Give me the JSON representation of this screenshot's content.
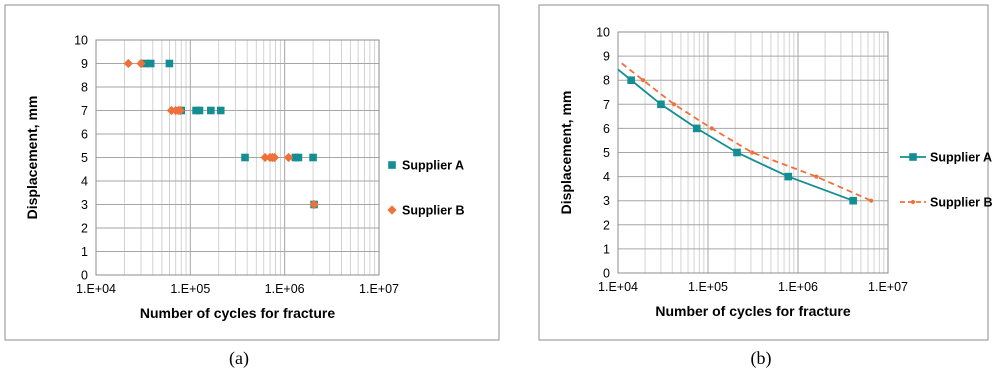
{
  "captions": [
    "(a)",
    "(b)"
  ],
  "colors": {
    "supplier_a": "#138e93",
    "supplier_b": "#f0703a"
  },
  "chart_data": [
    {
      "type": "scatter",
      "title": "",
      "xlabel": "Number of cycles for fracture",
      "ylabel": "Displacement,  mm",
      "xscale": "log",
      "xlim": [
        10000,
        10000000
      ],
      "ylim": [
        0,
        10
      ],
      "xticks": [
        10000,
        100000,
        1000000,
        10000000
      ],
      "xtick_labels": [
        "1.E+04",
        "1.E+05",
        "1.E+06",
        "1.E+07"
      ],
      "yticks": [
        0,
        1,
        2,
        3,
        4,
        5,
        6,
        7,
        8,
        9,
        10
      ],
      "ytick_labels": [
        "0",
        "1",
        "2",
        "3",
        "4",
        "5",
        "6",
        "7",
        "8",
        "9",
        "10"
      ],
      "grid": true,
      "legend_position": "right",
      "series": [
        {
          "name": "Supplier A",
          "marker": "square",
          "line": false,
          "points": [
            {
              "x": 33000,
              "y": 9
            },
            {
              "x": 38000,
              "y": 9
            },
            {
              "x": 60000,
              "y": 9
            },
            {
              "x": 80000,
              "y": 7
            },
            {
              "x": 115000,
              "y": 7
            },
            {
              "x": 125000,
              "y": 7
            },
            {
              "x": 165000,
              "y": 7
            },
            {
              "x": 210000,
              "y": 7
            },
            {
              "x": 380000,
              "y": 5
            },
            {
              "x": 1300000,
              "y": 5
            },
            {
              "x": 1400000,
              "y": 5
            },
            {
              "x": 2000000,
              "y": 5
            },
            {
              "x": 2050000,
              "y": 3
            }
          ]
        },
        {
          "name": "Supplier B",
          "marker": "diamond",
          "line": false,
          "points": [
            {
              "x": 22000,
              "y": 9
            },
            {
              "x": 30000,
              "y": 9
            },
            {
              "x": 63000,
              "y": 7
            },
            {
              "x": 70000,
              "y": 7
            },
            {
              "x": 75000,
              "y": 7
            },
            {
              "x": 78000,
              "y": 7
            },
            {
              "x": 620000,
              "y": 5
            },
            {
              "x": 700000,
              "y": 5
            },
            {
              "x": 740000,
              "y": 5
            },
            {
              "x": 780000,
              "y": 5
            },
            {
              "x": 1100000,
              "y": 5
            },
            {
              "x": 2050000,
              "y": 3
            }
          ]
        }
      ]
    },
    {
      "type": "line",
      "title": "",
      "xlabel": "Number of cycles for fracture",
      "ylabel": "Displacement,  mm",
      "xscale": "log",
      "xlim": [
        10000,
        10000000
      ],
      "ylim": [
        0,
        10
      ],
      "xticks": [
        10000,
        100000,
        1000000,
        10000000
      ],
      "xtick_labels": [
        "1.E+04",
        "1.E+05",
        "1.E+06",
        "1.E+07"
      ],
      "yticks": [
        0,
        1,
        2,
        3,
        4,
        5,
        6,
        7,
        8,
        9,
        10
      ],
      "ytick_labels": [
        "0",
        "1",
        "2",
        "3",
        "4",
        "5",
        "6",
        "7",
        "8",
        "9",
        "10"
      ],
      "grid": true,
      "legend_position": "right",
      "series": [
        {
          "name": "Supplier A",
          "marker": "square",
          "line": "solid",
          "points": [
            {
              "x": 10000,
              "y": 8.45
            },
            {
              "x": 14000,
              "y": 8
            },
            {
              "x": 30000,
              "y": 7
            },
            {
              "x": 75000,
              "y": 6
            },
            {
              "x": 210000,
              "y": 5
            },
            {
              "x": 780000,
              "y": 4
            },
            {
              "x": 4100000,
              "y": 3
            }
          ],
          "marked_points": [
            {
              "x": 14000,
              "y": 8
            },
            {
              "x": 30000,
              "y": 7
            },
            {
              "x": 75000,
              "y": 6
            },
            {
              "x": 210000,
              "y": 5
            },
            {
              "x": 780000,
              "y": 4
            },
            {
              "x": 4100000,
              "y": 3
            }
          ]
        },
        {
          "name": "Supplier B",
          "marker": "dot",
          "line": "dashed",
          "points": [
            {
              "x": 11000,
              "y": 8.7
            },
            {
              "x": 19000,
              "y": 8
            },
            {
              "x": 42000,
              "y": 7
            },
            {
              "x": 110000,
              "y": 6
            },
            {
              "x": 310000,
              "y": 5
            },
            {
              "x": 1600000,
              "y": 4
            },
            {
              "x": 6500000,
              "y": 3
            }
          ],
          "marked_points": [
            {
              "x": 19000,
              "y": 8
            },
            {
              "x": 42000,
              "y": 7
            },
            {
              "x": 110000,
              "y": 6
            },
            {
              "x": 310000,
              "y": 5
            },
            {
              "x": 1600000,
              "y": 4
            },
            {
              "x": 6500000,
              "y": 3
            }
          ]
        }
      ]
    }
  ]
}
